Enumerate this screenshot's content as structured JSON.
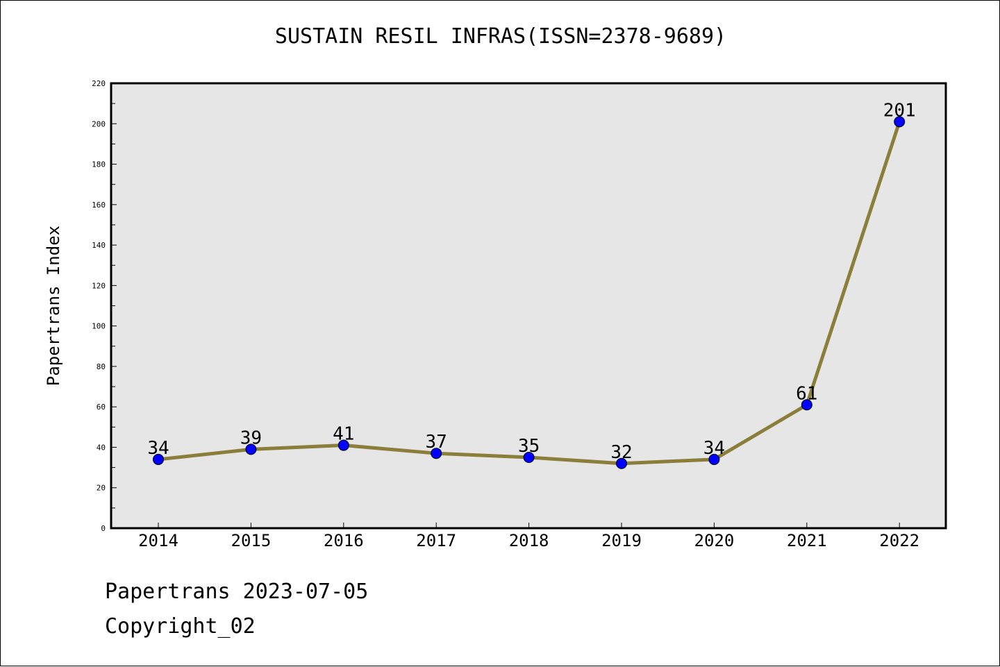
{
  "title": "SUSTAIN RESIL INFRAS(ISSN=2378-9689)",
  "footer": {
    "line1": "Papertrans 2023-07-05",
    "line2": "Copyright_02"
  },
  "colors": {
    "plot_background": "#e6e6e6",
    "line": "#8b7d3a",
    "marker": "#0000ff"
  },
  "chart_data": {
    "type": "line",
    "title": "SUSTAIN RESIL INFRAS(ISSN=2378-9689)",
    "xlabel": "",
    "ylabel": "Papertrans Index",
    "categories": [
      "2014",
      "2015",
      "2016",
      "2017",
      "2018",
      "2019",
      "2020",
      "2021",
      "2022"
    ],
    "values": [
      34,
      39,
      41,
      37,
      35,
      32,
      34,
      61,
      201
    ],
    "data_labels": [
      "34",
      "39",
      "41",
      "37",
      "35",
      "32",
      "34",
      "61",
      "201"
    ],
    "ylim": [
      0,
      220
    ],
    "yticks": [
      "0",
      "20",
      "40",
      "60",
      "80",
      "100",
      "120",
      "140",
      "160",
      "180",
      "200",
      "220"
    ],
    "grid": false,
    "legend": "none"
  }
}
